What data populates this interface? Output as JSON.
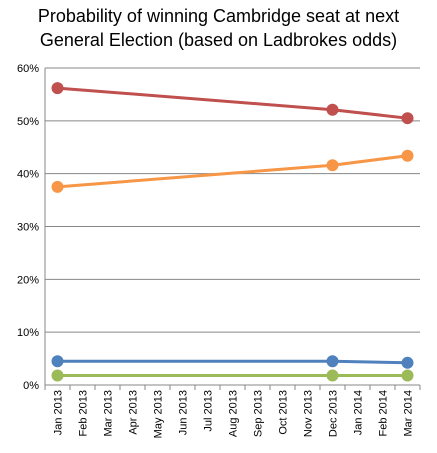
{
  "chart_data": {
    "type": "line",
    "title": "Probability of winning Cambridge seat at next\nGeneral Election (based on Ladbrokes odds)",
    "xlabel": "",
    "ylabel": "",
    "ylim": [
      0,
      0.6
    ],
    "yticks": [
      "0%",
      "10%",
      "20%",
      "30%",
      "40%",
      "50%",
      "60%"
    ],
    "categories": [
      "Jan 2013",
      "Feb 2013",
      "Mar 2013",
      "Apr 2013",
      "May 2013",
      "Jun 2013",
      "Jul 2013",
      "Aug 2013",
      "Sep 2013",
      "Oct 2013",
      "Nov 2013",
      "Dec 2013",
      "Jan 2014",
      "Feb 2014",
      "Mar 2014"
    ],
    "grid": true,
    "series": [
      {
        "color": "#c0504d",
        "points": [
          {
            "x": "Jan 2013",
            "y": 0.562
          },
          {
            "x": "Dec 2013",
            "y": 0.521
          },
          {
            "x": "Mar 2014",
            "y": 0.505
          }
        ]
      },
      {
        "color": "#f79646",
        "points": [
          {
            "x": "Jan 2013",
            "y": 0.375
          },
          {
            "x": "Dec 2013",
            "y": 0.416
          },
          {
            "x": "Mar 2014",
            "y": 0.434
          }
        ]
      },
      {
        "color": "#4f81bd",
        "points": [
          {
            "x": "Jan 2013",
            "y": 0.045
          },
          {
            "x": "Dec 2013",
            "y": 0.045
          },
          {
            "x": "Mar 2014",
            "y": 0.042
          }
        ]
      },
      {
        "color": "#9bbb59",
        "points": [
          {
            "x": "Jan 2013",
            "y": 0.018
          },
          {
            "x": "Dec 2013",
            "y": 0.018
          },
          {
            "x": "Mar 2014",
            "y": 0.018
          }
        ]
      }
    ]
  }
}
